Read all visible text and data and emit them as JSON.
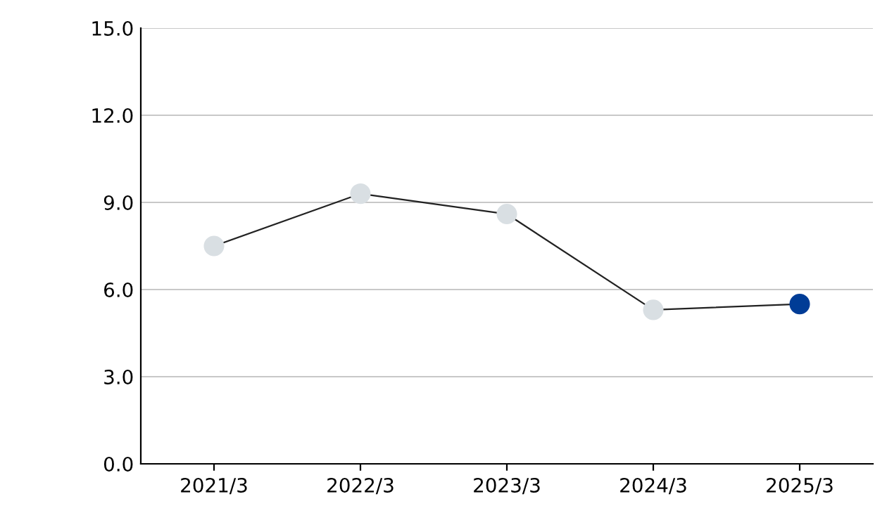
{
  "chart_data": {
    "type": "line",
    "categories": [
      "2021/3",
      "2022/3",
      "2023/3",
      "2024/3",
      "2025/3"
    ],
    "series": [
      {
        "color": "#222222",
        "colors": [
          "#d9dfe3",
          "#d9dfe3",
          "#d9dfe3",
          "#d9dfe3",
          "#003c96"
        ],
        "values": [
          7.5,
          9.3,
          8.6,
          5.3,
          5.5
        ]
      }
    ],
    "ylim": [
      0,
      15
    ],
    "yticks": [
      {
        "value": 0,
        "label": "0.0"
      },
      {
        "value": 3,
        "label": "3.0"
      },
      {
        "value": 6,
        "label": "6.0"
      },
      {
        "value": 9,
        "label": "9.0"
      },
      {
        "value": 12,
        "label": "12.0"
      },
      {
        "value": 15,
        "label": "15.0"
      }
    ],
    "grid": "y",
    "marker": "circle",
    "line_style": "solid"
  }
}
